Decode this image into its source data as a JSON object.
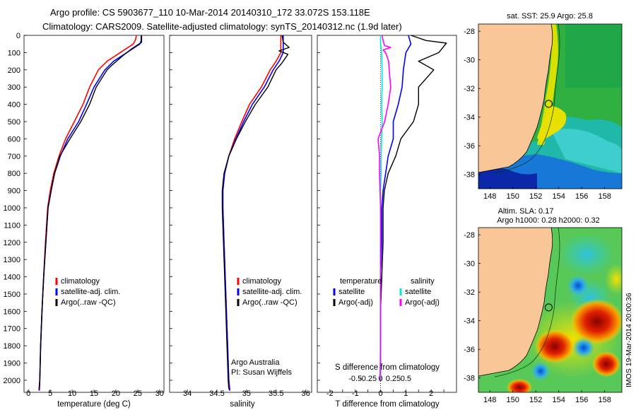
{
  "title": {
    "line1": "Argo profile: CS 5903677_110 10-Mar-2014 20140310_172 33.072S 153.118E",
    "line2": "Climatology: CARS2009. Satellite-adjusted climatology: synTS_20140312.nc (1.9d later)"
  },
  "colors": {
    "climatology": "#ff0000",
    "satellite": "#0000ff",
    "argo": "#000000",
    "salinity_satellite": "#00e5e5",
    "salinity_argo": "#ff00ff",
    "land": "#f8c697"
  },
  "credits": {
    "line1": "Argo Australia",
    "line2": "PI: Susan Wijffels"
  },
  "stamp": "IMOS 19-Mar-2014 20:00:36",
  "chart_data": [
    {
      "type": "line",
      "panel": "temperature",
      "xlabel": "temperature (deg C)",
      "ylabel": "",
      "xlim": [
        -1,
        31
      ],
      "ylim": [
        2070,
        0
      ],
      "x_ticks": [
        0,
        5,
        10,
        15,
        20,
        25,
        30
      ],
      "y_ticks": [
        0,
        100,
        200,
        300,
        400,
        500,
        600,
        700,
        800,
        900,
        1000,
        1100,
        1200,
        1300,
        1400,
        1500,
        1600,
        1700,
        1800,
        1900,
        2000
      ],
      "legend": [
        "climatology",
        "satellite-adj. clim.",
        "Argo(..raw -QC)"
      ],
      "legend_position": "lower-center",
      "series": [
        {
          "name": "climatology",
          "color": "#ff0000",
          "points": [
            [
              24.7,
              0
            ],
            [
              24.5,
              25
            ],
            [
              24,
              50
            ],
            [
              21,
              100
            ],
            [
              18,
              150
            ],
            [
              16,
              200
            ],
            [
              14,
              300
            ],
            [
              12.5,
              400
            ],
            [
              10.5,
              500
            ],
            [
              8.5,
              600
            ],
            [
              7,
              700
            ],
            [
              5.8,
              800
            ],
            [
              5,
              900
            ],
            [
              4.4,
              1000
            ],
            [
              3.9,
              1200
            ],
            [
              3.5,
              1400
            ],
            [
              3.1,
              1600
            ],
            [
              2.8,
              1800
            ],
            [
              2.6,
              2000
            ],
            [
              2.4,
              2060
            ]
          ]
        },
        {
          "name": "satellite-adj. clim.",
          "color": "#0000ff",
          "points": [
            [
              25.8,
              0
            ],
            [
              25.8,
              30
            ],
            [
              25.5,
              50
            ],
            [
              22.5,
              100
            ],
            [
              19.5,
              150
            ],
            [
              17.5,
              200
            ],
            [
              15,
              300
            ],
            [
              13.3,
              400
            ],
            [
              11.5,
              500
            ],
            [
              9,
              600
            ],
            [
              7.3,
              700
            ],
            [
              6,
              800
            ],
            [
              5.2,
              900
            ],
            [
              4.5,
              1000
            ],
            [
              4,
              1200
            ],
            [
              3.5,
              1400
            ],
            [
              3.1,
              1600
            ],
            [
              2.8,
              1800
            ],
            [
              2.6,
              2000
            ],
            [
              2.5,
              2060
            ]
          ]
        },
        {
          "name": "Argo(..raw -QC)",
          "color": "#000000",
          "points": [
            [
              25.9,
              0
            ],
            [
              25.9,
              25
            ],
            [
              25.9,
              40
            ],
            [
              23.5,
              80
            ],
            [
              21.5,
              120
            ],
            [
              19,
              175
            ],
            [
              18,
              200
            ],
            [
              15.5,
              300
            ],
            [
              14,
              400
            ],
            [
              12,
              500
            ],
            [
              9.5,
              600
            ],
            [
              7.2,
              700
            ],
            [
              6,
              800
            ],
            [
              5.2,
              900
            ],
            [
              4.5,
              1000
            ],
            [
              4,
              1200
            ],
            [
              3.5,
              1400
            ],
            [
              3.1,
              1600
            ],
            [
              2.8,
              1800
            ],
            [
              2.6,
              2000
            ],
            [
              2.5,
              2050
            ]
          ]
        }
      ]
    },
    {
      "type": "line",
      "panel": "salinity",
      "xlabel": "salinity",
      "ylabel": "",
      "xlim": [
        33.7,
        36.1
      ],
      "ylim": [
        2070,
        0
      ],
      "x_ticks": [
        34,
        34.5,
        35,
        35.5,
        36
      ],
      "legend": [
        "climatology",
        "satellite-adj. clim.",
        "Argo(..raw -QC)"
      ],
      "legend_position": "lower-center",
      "series": [
        {
          "name": "climatology",
          "color": "#ff0000",
          "points": [
            [
              35.58,
              0
            ],
            [
              35.58,
              50
            ],
            [
              35.58,
              100
            ],
            [
              35.5,
              150
            ],
            [
              35.4,
              200
            ],
            [
              35.25,
              300
            ],
            [
              35.05,
              400
            ],
            [
              34.92,
              500
            ],
            [
              34.8,
              600
            ],
            [
              34.7,
              700
            ],
            [
              34.63,
              800
            ],
            [
              34.6,
              900
            ],
            [
              34.6,
              1000
            ],
            [
              34.62,
              1200
            ],
            [
              34.64,
              1400
            ],
            [
              34.66,
              1600
            ],
            [
              34.68,
              1800
            ],
            [
              34.7,
              2000
            ],
            [
              34.72,
              2060
            ]
          ]
        },
        {
          "name": "satellite-adj. clim.",
          "color": "#0000ff",
          "points": [
            [
              35.62,
              0
            ],
            [
              35.62,
              50
            ],
            [
              35.62,
              100
            ],
            [
              35.55,
              150
            ],
            [
              35.45,
              200
            ],
            [
              35.3,
              300
            ],
            [
              35.1,
              400
            ],
            [
              34.95,
              500
            ],
            [
              34.82,
              600
            ],
            [
              34.7,
              700
            ],
            [
              34.63,
              800
            ],
            [
              34.6,
              900
            ],
            [
              34.6,
              1000
            ],
            [
              34.62,
              1200
            ],
            [
              34.64,
              1400
            ],
            [
              34.66,
              1600
            ],
            [
              34.68,
              1800
            ],
            [
              34.7,
              2000
            ],
            [
              34.71,
              2060
            ]
          ]
        },
        {
          "name": "Argo(..raw -QC)",
          "color": "#000000",
          "points": [
            [
              35.6,
              0
            ],
            [
              35.62,
              40
            ],
            [
              35.72,
              70
            ],
            [
              35.55,
              90
            ],
            [
              35.7,
              110
            ],
            [
              35.66,
              130
            ],
            [
              35.6,
              160
            ],
            [
              35.5,
              200
            ],
            [
              35.36,
              300
            ],
            [
              35.15,
              400
            ],
            [
              34.98,
              500
            ],
            [
              34.83,
              600
            ],
            [
              34.7,
              700
            ],
            [
              34.62,
              800
            ],
            [
              34.59,
              900
            ],
            [
              34.59,
              1000
            ],
            [
              34.61,
              1200
            ],
            [
              34.63,
              1400
            ],
            [
              34.65,
              1600
            ],
            [
              34.67,
              1800
            ],
            [
              34.69,
              2000
            ],
            [
              34.7,
              2050
            ]
          ]
        }
      ]
    },
    {
      "type": "line",
      "panel": "difference",
      "title": "",
      "xlabel": "T difference from climatology",
      "xlabel_top": "S difference from climatology",
      "xlim": [
        -2.5,
        3
      ],
      "ylim": [
        2070,
        0
      ],
      "x_ticks": [
        -2,
        -1.5,
        -1,
        -0.5,
        0,
        0.5,
        1,
        1.5,
        2,
        2.5
      ],
      "x_tick_labels": [
        "-2",
        "",
        "-1",
        "",
        "0",
        "",
        "1",
        "",
        "2",
        ""
      ],
      "x_ticks_secondary": [
        -0.5,
        -0.25,
        0,
        0.25,
        0.5
      ],
      "legend_headings": [
        "temperature",
        "salinity"
      ],
      "legend": [
        "satellite",
        "Argo(-adj)",
        "satellite",
        "Argo(-adj)"
      ],
      "legend_position": "lower-center",
      "series": [
        {
          "name": "satellite",
          "group": "temperature",
          "color": "#0000ff",
          "points": [
            [
              1.1,
              0
            ],
            [
              1.2,
              50
            ],
            [
              1,
              100
            ],
            [
              0.9,
              200
            ],
            [
              0.85,
              300
            ],
            [
              0.7,
              400
            ],
            [
              0.5,
              500
            ],
            [
              0.5,
              600
            ],
            [
              0.3,
              700
            ],
            [
              0.2,
              800
            ],
            [
              0.1,
              900
            ],
            [
              0.05,
              1000
            ],
            [
              0.05,
              1200
            ],
            [
              0,
              1400
            ],
            [
              0,
              1600
            ],
            [
              0,
              1800
            ],
            [
              0,
              2000
            ]
          ]
        },
        {
          "name": "Argo(-adj)",
          "group": "temperature",
          "color": "#000000",
          "points": [
            [
              1.2,
              0
            ],
            [
              1.8,
              30
            ],
            [
              2.6,
              45
            ],
            [
              2.3,
              100
            ],
            [
              1.5,
              150
            ],
            [
              2.1,
              200
            ],
            [
              1.5,
              300
            ],
            [
              1.5,
              400
            ],
            [
              1.3,
              500
            ],
            [
              0.8,
              600
            ],
            [
              0.6,
              700
            ],
            [
              0.3,
              800
            ],
            [
              0.15,
              900
            ],
            [
              0.1,
              1000
            ],
            [
              0.1,
              1200
            ],
            [
              0.05,
              1400
            ],
            [
              0,
              1600
            ],
            [
              0,
              1800
            ],
            [
              0,
              2000
            ]
          ]
        },
        {
          "name": "satellite",
          "group": "salinity",
          "color": "#00e5e5",
          "points": [
            [
              0,
              0
            ],
            [
              0,
              50
            ],
            [
              0.02,
              100
            ],
            [
              0.03,
              200
            ],
            [
              0.03,
              300
            ],
            [
              0.02,
              400
            ],
            [
              0.03,
              500
            ],
            [
              0.02,
              600
            ],
            [
              0.01,
              700
            ],
            [
              0.01,
              800
            ],
            [
              0,
              900
            ],
            [
              0,
              1000
            ],
            [
              0,
              1200
            ],
            [
              0,
              1400
            ],
            [
              0,
              1600
            ],
            [
              0,
              1800
            ],
            [
              0,
              2000
            ]
          ]
        },
        {
          "name": "Argo(-adj)",
          "group": "salinity",
          "color": "#ff00ff",
          "points": [
            [
              0.03,
              0
            ],
            [
              0.05,
              30
            ],
            [
              0.08,
              60
            ],
            [
              0.2,
              70
            ],
            [
              0.05,
              85
            ],
            [
              0.1,
              100
            ],
            [
              0.16,
              150
            ],
            [
              0.17,
              200
            ],
            [
              0.2,
              300
            ],
            [
              0.15,
              400
            ],
            [
              0.08,
              500
            ],
            [
              -0.05,
              600
            ],
            [
              -0.02,
              700
            ],
            [
              -0.02,
              800
            ],
            [
              -0.01,
              900
            ],
            [
              0,
              1000
            ],
            [
              0,
              1200
            ],
            [
              0,
              1400
            ],
            [
              0,
              1600
            ],
            [
              0,
              1800
            ],
            [
              -0.01,
              2000
            ]
          ]
        }
      ]
    },
    {
      "type": "heatmap",
      "panel": "sst-map",
      "title": "sat. SST: 25.9 Argo: 25.8",
      "xlim": [
        147,
        159.5
      ],
      "ylim": [
        -39,
        -27.5
      ],
      "x_ticks": [
        148,
        150,
        152,
        154,
        156,
        158
      ],
      "y_ticks": [
        -28,
        -30,
        -32,
        -34,
        -36,
        -38
      ],
      "marker": {
        "lon": 153.118,
        "lat": -33.072
      }
    },
    {
      "type": "heatmap",
      "panel": "sla-map",
      "title": "Altim. SLA: 0.17",
      "subtitle": "Argo h1000: 0.28 h2000: 0.32",
      "xlim": [
        147,
        159.5
      ],
      "ylim": [
        -39,
        -27.5
      ],
      "x_ticks": [
        148,
        150,
        152,
        154,
        156,
        158
      ],
      "y_ticks": [
        -28,
        -30,
        -32,
        -34,
        -36,
        -38
      ],
      "marker": {
        "lon": 153.118,
        "lat": -33.072
      }
    }
  ]
}
